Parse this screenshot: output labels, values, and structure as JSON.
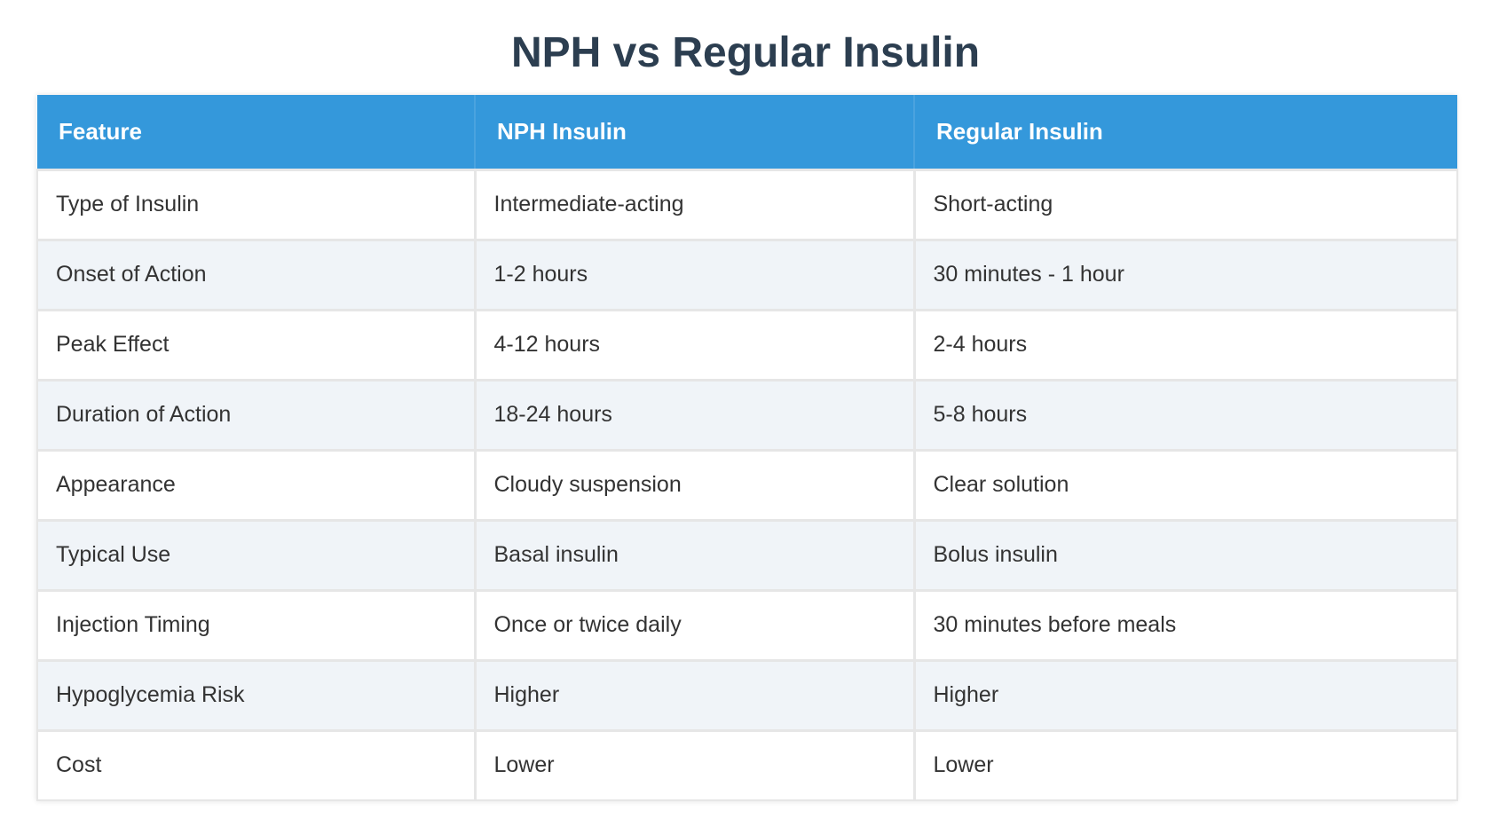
{
  "title": "NPH vs Regular Insulin",
  "table": {
    "headers": [
      "Feature",
      "NPH Insulin",
      "Regular Insulin"
    ],
    "rows": [
      [
        "Type of Insulin",
        "Intermediate-acting",
        "Short-acting"
      ],
      [
        "Onset of Action",
        "1-2 hours",
        "30 minutes - 1 hour"
      ],
      [
        "Peak Effect",
        "4-12 hours",
        "2-4 hours"
      ],
      [
        "Duration of Action",
        "18-24 hours",
        "5-8 hours"
      ],
      [
        "Appearance",
        "Cloudy suspension",
        "Clear solution"
      ],
      [
        "Typical Use",
        "Basal insulin",
        "Bolus insulin"
      ],
      [
        "Injection Timing",
        "Once or twice daily",
        "30 minutes before meals"
      ],
      [
        "Hypoglycemia Risk",
        "Higher",
        "Higher"
      ],
      [
        "Cost",
        "Lower",
        "Lower"
      ]
    ]
  },
  "colors": {
    "header_bg": "#3498db",
    "title": "#2c3e50",
    "row_alt": "#f0f4f8"
  }
}
